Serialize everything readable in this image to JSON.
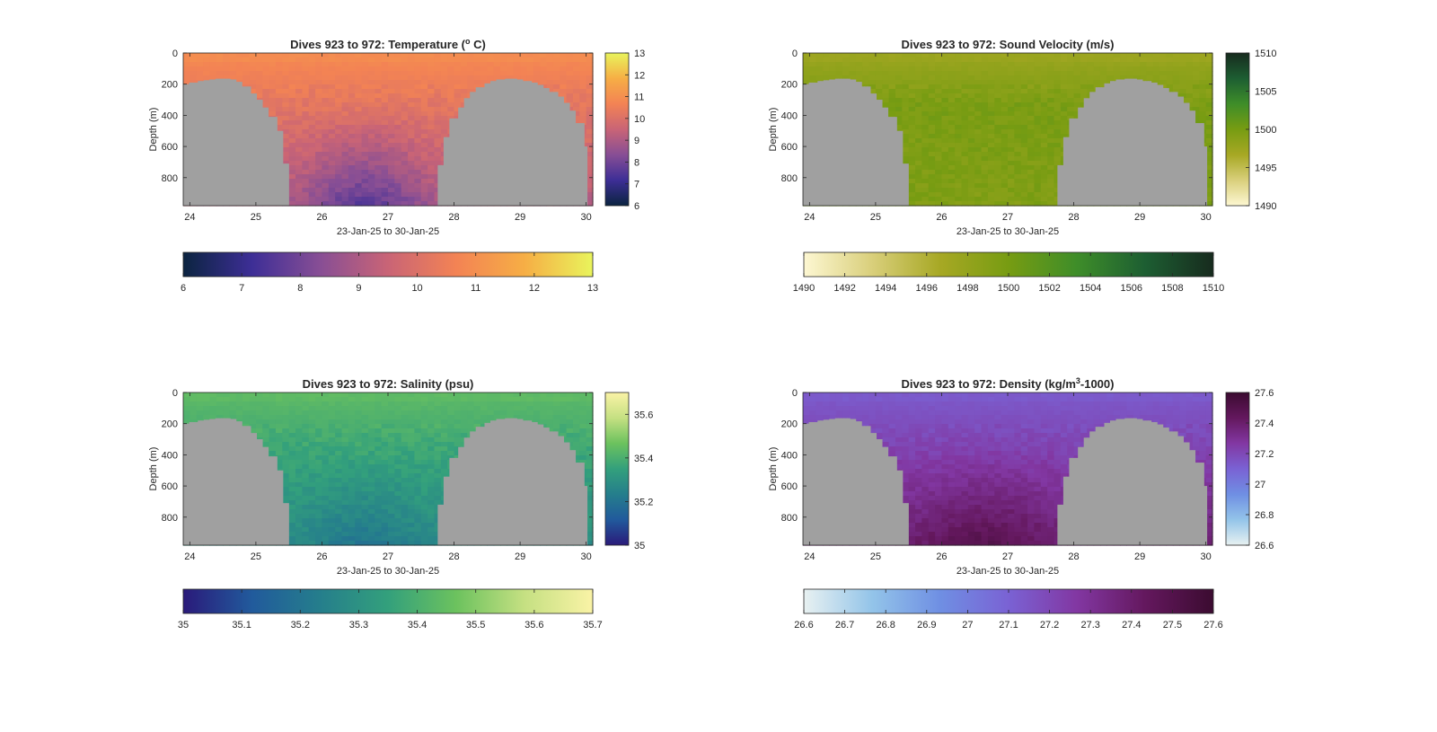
{
  "figure": {
    "background": "#ffffff"
  },
  "chart_data": [
    {
      "type": "heatmap",
      "title": "Dives 923 to 972: Temperature (",
      "title_sup": "o",
      "title_end": " C)",
      "xlabel": "23-Jan-25 to 30-Jan-25",
      "ylabel": "Depth (m)",
      "xlim": [
        23.9,
        30.1
      ],
      "ylim": [
        0,
        980
      ],
      "y_reversed": true,
      "xticks": [
        24,
        25,
        26,
        27,
        28,
        29,
        30
      ],
      "yticks": [
        0,
        200,
        400,
        600,
        800
      ],
      "clim": [
        6,
        13
      ],
      "colormap": [
        "#0b2440",
        "#3d2e96",
        "#874e95",
        "#c96476",
        "#f38354",
        "#f6ae45",
        "#e9f45c"
      ],
      "colorbar_ticks": [
        6,
        7,
        8,
        9,
        10,
        11,
        12,
        13
      ],
      "hbar_ticks": [
        6,
        7,
        8,
        9,
        10,
        11,
        12,
        13
      ],
      "field": {
        "surface": 10.9,
        "mid": 9.7,
        "bottom": 7.6,
        "edge_bottom": 9.2,
        "noise": 0.25
      }
    },
    {
      "type": "heatmap",
      "title": "Dives 923 to 972: Sound Velocity (m/s)",
      "xlabel": "23-Jan-25 to 30-Jan-25",
      "ylabel": "Depth (m)",
      "xlim": [
        23.9,
        30.1
      ],
      "ylim": [
        0,
        980
      ],
      "y_reversed": true,
      "xticks": [
        24,
        25,
        26,
        27,
        28,
        29,
        30
      ],
      "yticks": [
        0,
        200,
        400,
        600,
        800
      ],
      "clim": [
        1490,
        1510
      ],
      "colormap": [
        "#fdf7d2",
        "#d9cf7b",
        "#a7a824",
        "#779c12",
        "#3e8d29",
        "#1d5e32",
        "#172b1e"
      ],
      "colorbar_ticks": [
        1490,
        1495,
        1500,
        1505,
        1510
      ],
      "hbar_ticks": [
        1490,
        1492,
        1494,
        1496,
        1498,
        1500,
        1502,
        1504,
        1506,
        1508,
        1510
      ],
      "field": {
        "surface": 1497.5,
        "mid": 1501.3,
        "bottom": 1499.2,
        "edge_bottom": 1499.5,
        "noise": 0.7
      }
    },
    {
      "type": "heatmap",
      "title": "Dives 923 to 972: Salinity (psu)",
      "xlabel": "23-Jan-25 to 30-Jan-25",
      "ylabel": "Depth (m)",
      "xlim": [
        23.9,
        30.1
      ],
      "ylim": [
        0,
        980
      ],
      "y_reversed": true,
      "xticks": [
        24,
        25,
        26,
        27,
        28,
        29,
        30
      ],
      "yticks": [
        0,
        200,
        400,
        600,
        800
      ],
      "clim": [
        35,
        35.7
      ],
      "colormap": [
        "#2a1a7a",
        "#215a9c",
        "#257e8c",
        "#33a07c",
        "#6cc25e",
        "#c5e082",
        "#faf3a6"
      ],
      "colorbar_ticks": [
        35,
        35.2,
        35.4,
        35.6
      ],
      "hbar_ticks": [
        35,
        35.1,
        35.2,
        35.3,
        35.4,
        35.5,
        35.6,
        35.7
      ],
      "field": {
        "surface": 35.44,
        "mid": 35.33,
        "bottom": 35.21,
        "edge_bottom": 35.29,
        "noise": 0.025
      }
    },
    {
      "type": "heatmap",
      "title": "Dives 923 to 972: Density (kg/m",
      "title_sup": "3",
      "title_end": "-1000)",
      "xlabel": "23-Jan-25 to 30-Jan-25",
      "ylabel": "Depth (m)",
      "xlim": [
        23.9,
        30.1
      ],
      "ylim": [
        0,
        980
      ],
      "y_reversed": true,
      "xticks": [
        24,
        25,
        26,
        27,
        28,
        29,
        30
      ],
      "yticks": [
        0,
        200,
        400,
        600,
        800
      ],
      "clim": [
        26.6,
        27.6
      ],
      "colormap": [
        "#e8f1f1",
        "#93c4e9",
        "#6f8fe3",
        "#7a62d4",
        "#8237a2",
        "#64185e",
        "#3b0b30"
      ],
      "colorbar_ticks": [
        26.6,
        26.8,
        27,
        27.2,
        27.4,
        27.6
      ],
      "hbar_ticks": [
        26.6,
        26.7,
        26.8,
        26.9,
        27,
        27.1,
        27.2,
        27.3,
        27.4,
        27.5,
        27.6
      ],
      "field": {
        "surface": 27.13,
        "mid": 27.27,
        "bottom": 27.49,
        "edge_bottom": 27.38,
        "noise": 0.03
      }
    }
  ],
  "terrain_mask": {
    "color": "#a0a0a0",
    "left_hill": [
      {
        "x": 23.9,
        "top": 200
      },
      {
        "x": 24.0,
        "top": 190
      },
      {
        "x": 24.1,
        "top": 180
      },
      {
        "x": 24.2,
        "top": 175
      },
      {
        "x": 24.3,
        "top": 170
      },
      {
        "x": 24.4,
        "top": 165
      },
      {
        "x": 24.5,
        "top": 165
      },
      {
        "x": 24.6,
        "top": 170
      },
      {
        "x": 24.7,
        "top": 185
      },
      {
        "x": 24.8,
        "top": 215
      },
      {
        "x": 24.9,
        "top": 260
      },
      {
        "x": 25.0,
        "top": 300
      },
      {
        "x": 25.1,
        "top": 350
      },
      {
        "x": 25.2,
        "top": 410
      },
      {
        "x": 25.3,
        "top": 500
      },
      {
        "x": 25.4,
        "top": 710
      },
      {
        "x": 25.5,
        "top": 980
      }
    ],
    "right_hill": [
      {
        "x": 27.75,
        "top": 720
      },
      {
        "x": 27.85,
        "top": 540
      },
      {
        "x": 27.95,
        "top": 420
      },
      {
        "x": 28.05,
        "top": 350
      },
      {
        "x": 28.15,
        "top": 290
      },
      {
        "x": 28.25,
        "top": 250
      },
      {
        "x": 28.35,
        "top": 220
      },
      {
        "x": 28.45,
        "top": 195
      },
      {
        "x": 28.55,
        "top": 180
      },
      {
        "x": 28.65,
        "top": 170
      },
      {
        "x": 28.75,
        "top": 165
      },
      {
        "x": 28.85,
        "top": 165
      },
      {
        "x": 28.95,
        "top": 170
      },
      {
        "x": 29.05,
        "top": 180
      },
      {
        "x": 29.15,
        "top": 190
      },
      {
        "x": 29.25,
        "top": 205
      },
      {
        "x": 29.35,
        "top": 225
      },
      {
        "x": 29.45,
        "top": 250
      },
      {
        "x": 29.55,
        "top": 280
      },
      {
        "x": 29.65,
        "top": 320
      },
      {
        "x": 29.75,
        "top": 370
      },
      {
        "x": 29.85,
        "top": 450
      },
      {
        "x": 29.95,
        "top": 600
      },
      {
        "x": 30.0,
        "top": 980
      }
    ]
  }
}
